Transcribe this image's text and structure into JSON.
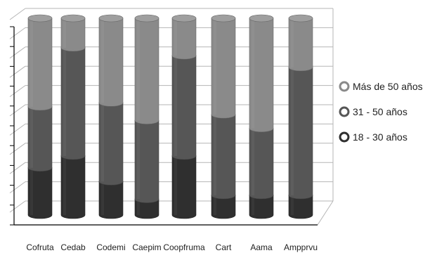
{
  "chart_data": {
    "type": "bar",
    "stacked": true,
    "percent_stacked": true,
    "three_d": true,
    "categories": [
      "Cofruta",
      "Cedab",
      "Codemi",
      "Caepim",
      "Coopfruma",
      "Cart",
      "Aama",
      "Ampprvu"
    ],
    "series": [
      {
        "name": "18 - 30 años",
        "color": "#2f2f2f",
        "values": [
          24,
          30,
          17,
          8,
          30,
          10,
          10,
          10
        ]
      },
      {
        "name": "31 - 50 años",
        "color": "#565656",
        "values": [
          31,
          55,
          40,
          40,
          51,
          41,
          34,
          65
        ]
      },
      {
        "name": "Más de 50 años",
        "color": "#8a8a8a",
        "values": [
          45,
          15,
          43,
          52,
          19,
          49,
          56,
          25
        ]
      }
    ],
    "ylim": [
      0,
      100
    ],
    "grid": true,
    "legend_position": "right"
  }
}
